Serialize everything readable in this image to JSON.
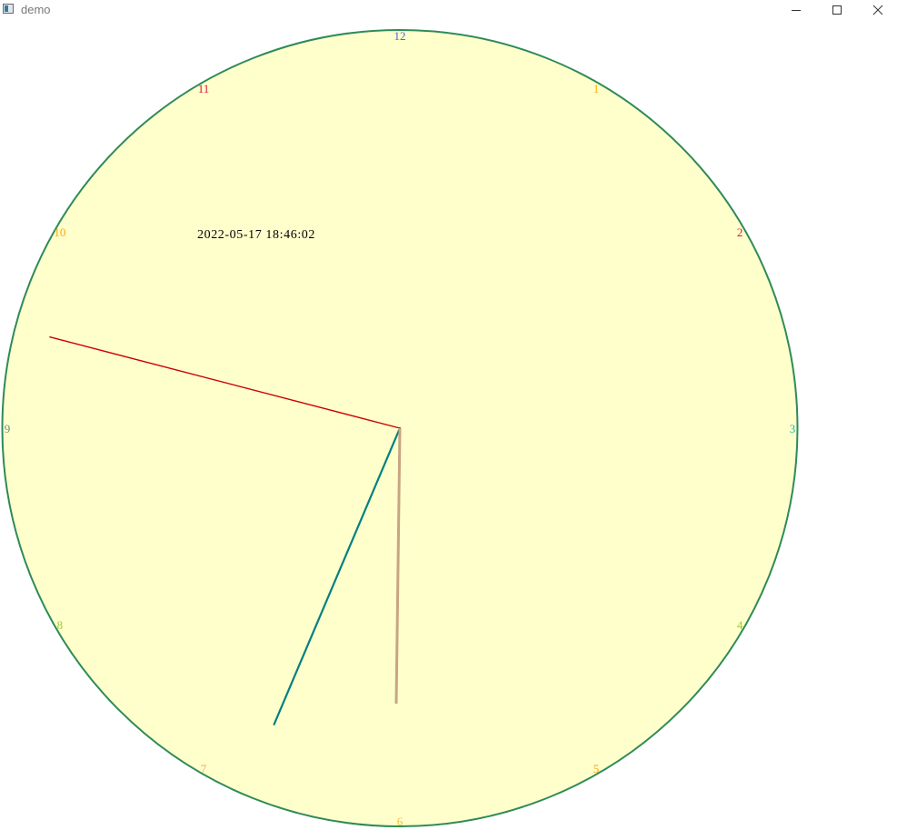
{
  "window": {
    "title": "demo",
    "icon": "app-window-icon",
    "controls": {
      "minimize_icon": "minimize-icon",
      "maximize_icon": "maximize-icon",
      "close_icon": "close-icon"
    }
  },
  "clock": {
    "datetime_text": "2022-05-17 18:46:02",
    "time": {
      "hour": 18,
      "minute": 46,
      "second": 2
    },
    "face_color": "#ffffcc",
    "rim_color": "#2e8b57",
    "numerals": [
      {
        "label": "12",
        "color": "#4169e1"
      },
      {
        "label": "1",
        "color": "#ffa500"
      },
      {
        "label": "2",
        "color": "#dc143c"
      },
      {
        "label": "3",
        "color": "#20b2aa"
      },
      {
        "label": "4",
        "color": "#9acd32"
      },
      {
        "label": "5",
        "color": "#ffa500"
      },
      {
        "label": "6",
        "color": "#ffc125"
      },
      {
        "label": "7",
        "color": "#f4a460"
      },
      {
        "label": "8",
        "color": "#9acd32"
      },
      {
        "label": "9",
        "color": "#6b8e8e"
      },
      {
        "label": "10",
        "color": "#ffa500"
      },
      {
        "label": "11",
        "color": "#dc143c"
      }
    ],
    "hands": {
      "hour": {
        "color": "#008080"
      },
      "minute": {
        "color": "#cc0000"
      },
      "second": {
        "color": "#c8a582"
      }
    }
  }
}
